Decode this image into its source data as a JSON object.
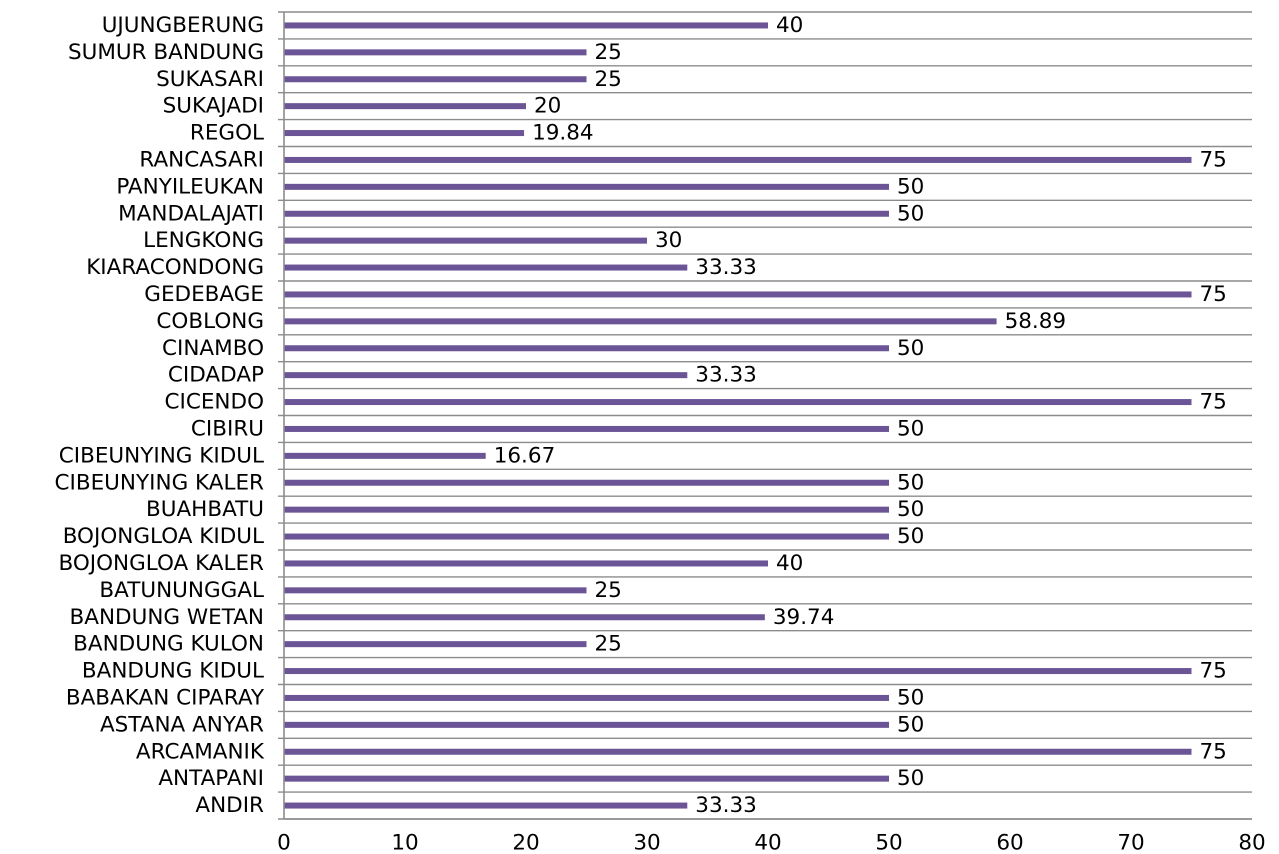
{
  "chart_data": {
    "type": "bar",
    "orientation": "horizontal",
    "categories": [
      "ANDIR",
      "ANTAPANI",
      "ARCAMANIK",
      "ASTANA ANYAR",
      "BABAKAN CIPARAY",
      "BANDUNG KIDUL",
      "BANDUNG KULON",
      "BANDUNG WETAN",
      "BATUNUNGGAL",
      "BOJONGLOA KALER",
      "BOJONGLOA KIDUL",
      "BUAHBATU",
      "CIBEUNYING KALER",
      "CIBEUNYING KIDUL",
      "CIBIRU",
      "CICENDO",
      "CIDADAP",
      "CINAMBO",
      "COBLONG",
      "GEDEBAGE",
      "KIARACONDONG",
      "LENGKONG",
      "MANDALAJATI",
      "PANYILEUKAN",
      "RANCASARI",
      "REGOL",
      "SUKAJADI",
      "SUKASARI",
      "SUMUR BANDUNG",
      "UJUNGBERUNG"
    ],
    "values": [
      33.33,
      50,
      75,
      50,
      50,
      75,
      25,
      39.74,
      25,
      40,
      50,
      50,
      50,
      16.67,
      50,
      75,
      33.33,
      50,
      58.89,
      75,
      33.33,
      30,
      50,
      50,
      75,
      19.84,
      20,
      25,
      25,
      40
    ],
    "value_labels": [
      "33.33",
      "50",
      "75",
      "50",
      "50",
      "75",
      "25",
      "39.74",
      "25",
      "40",
      "50",
      "50",
      "50",
      "16.67",
      "50",
      "75",
      "33.33",
      "50",
      "58.89",
      "75",
      "33.33",
      "30",
      "50",
      "50",
      "75",
      "19.84",
      "20",
      "25",
      "25",
      "40"
    ],
    "x_ticks": [
      "0",
      "10",
      "20",
      "30",
      "40",
      "50",
      "60",
      "70",
      "80"
    ],
    "xlim": [
      0,
      80
    ],
    "title": "",
    "xlabel": "",
    "ylabel": "",
    "grid": "horizontal",
    "legend": "none",
    "colors": {
      "bar": "#6b5596",
      "gridline": "#8c8c8c",
      "axis": "#8c8c8c",
      "text": "#000000"
    }
  }
}
